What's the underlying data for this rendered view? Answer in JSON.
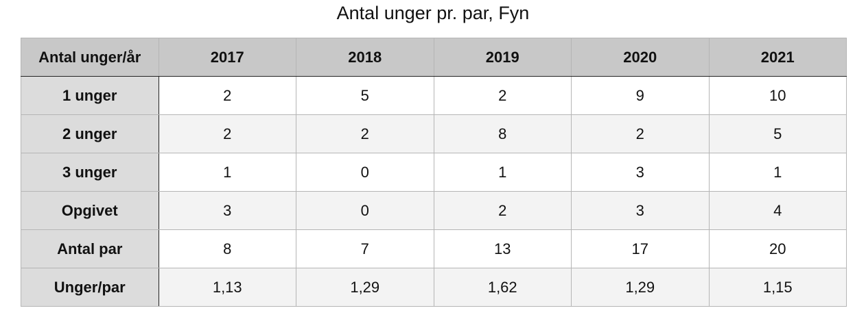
{
  "title": "Antal unger pr. par, Fyn",
  "table": {
    "header": [
      "Antal unger/år",
      "2017",
      "2018",
      "2019",
      "2020",
      "2021"
    ],
    "rows": [
      [
        "1 unger",
        "2",
        "5",
        "2",
        "9",
        "10"
      ],
      [
        "2 unger",
        "2",
        "2",
        "8",
        "2",
        "5"
      ],
      [
        "3 unger",
        "1",
        "0",
        "1",
        "3",
        "1"
      ],
      [
        "Opgivet",
        "3",
        "0",
        "2",
        "3",
        "4"
      ],
      [
        "Antal par",
        "8",
        "7",
        "13",
        "17",
        "20"
      ],
      [
        "Unger/par",
        "1,13",
        "1,29",
        "1,62",
        "1,29",
        "1,15"
      ]
    ]
  }
}
